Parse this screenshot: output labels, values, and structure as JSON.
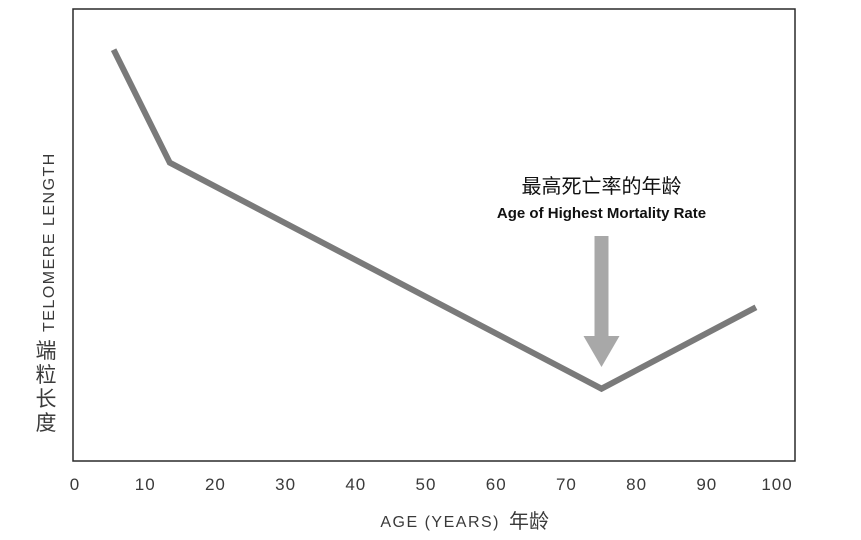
{
  "chart_data": {
    "type": "line",
    "xlabel_en": "AGE (YEARS)",
    "xlabel_cn": "年龄",
    "ylabel_en": "TELOMERE LENGTH",
    "ylabel_cn": "端粒长度",
    "xlim": [
      0,
      100
    ],
    "ylim": [
      0,
      100
    ],
    "x_ticks": [
      0,
      10,
      20,
      30,
      40,
      50,
      60,
      70,
      80,
      90,
      100
    ],
    "y_ticks_shown": false,
    "grid": false,
    "series": [
      {
        "color": "#7a7a7a",
        "points": [
          {
            "x": 5.5,
            "y": 91
          },
          {
            "x": 13.5,
            "y": 66
          },
          {
            "x": 75,
            "y": 16
          },
          {
            "x": 97,
            "y": 34
          }
        ]
      }
    ],
    "annotation": {
      "text_cn": "最高死亡率的年龄",
      "text_en": "Age of Highest Mortality Rate",
      "x": 75,
      "arrow_color": "#a8a8a8"
    }
  }
}
